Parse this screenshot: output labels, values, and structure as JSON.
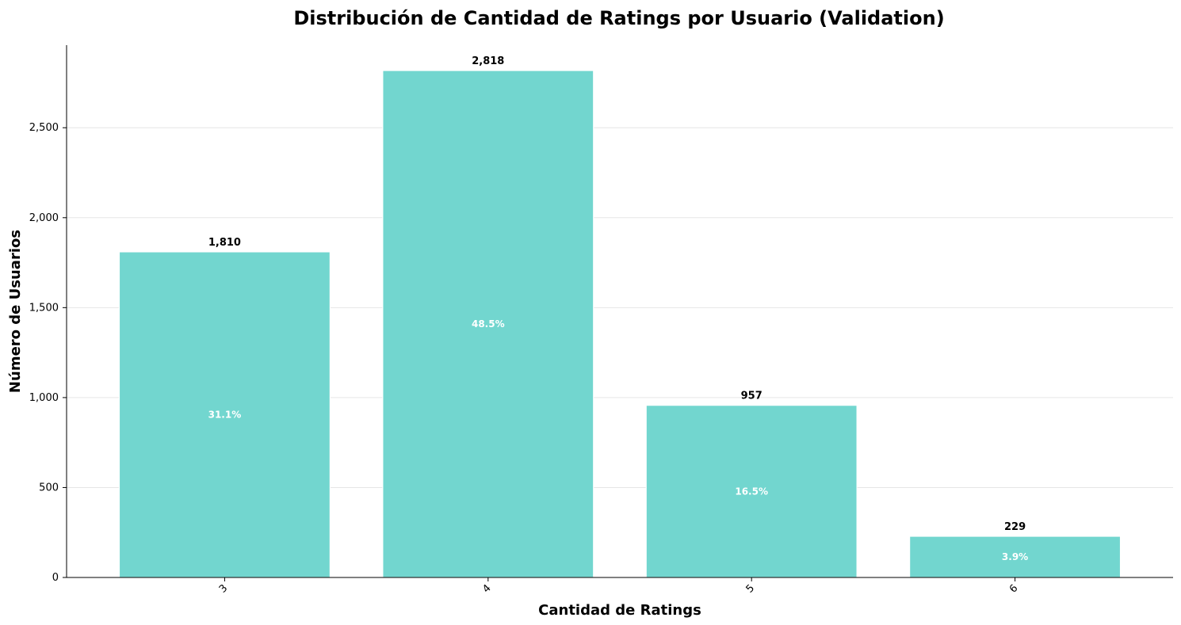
{
  "chart_data": {
    "type": "bar",
    "title": "Distribución de Cantidad de Ratings por Usuario (Validation)",
    "xlabel": "Cantidad de Ratings",
    "ylabel": "Número de Usuarios",
    "categories": [
      "3",
      "4",
      "5",
      "6"
    ],
    "values": [
      1810,
      2818,
      957,
      229
    ],
    "value_labels": [
      "1,810",
      "2,818",
      "957",
      "229"
    ],
    "percent_labels": [
      "31.1%",
      "48.5%",
      "16.5%",
      "3.9%"
    ],
    "y_ticks": [
      0,
      500,
      1000,
      1500,
      2000,
      2500
    ],
    "y_tick_labels": [
      "0",
      "500",
      "1,000",
      "1,500",
      "2,000",
      "2,500"
    ],
    "ylim": [
      0,
      2959
    ],
    "grid": "horizontal",
    "colors": {
      "bar": "#72d6cf",
      "bar_edge": "#ffffff",
      "grid": "#e6e6e6",
      "axis": "#000000",
      "percent_text": "#ffffff",
      "value_text": "#000000"
    }
  }
}
